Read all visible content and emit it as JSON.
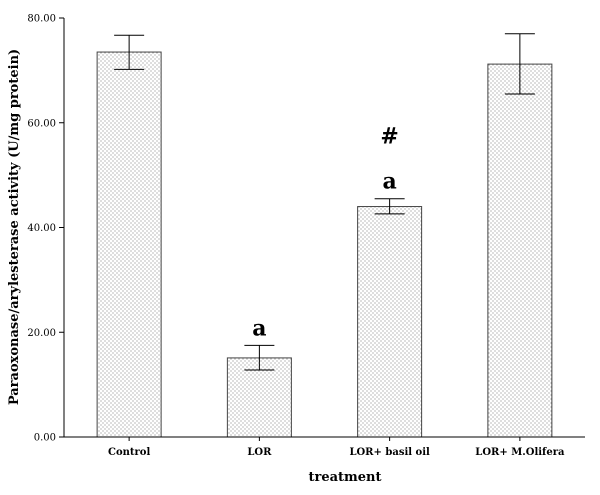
{
  "chart_data": {
    "type": "bar",
    "title": "",
    "xlabel": "treatment",
    "ylabel": "Paraoxonase/arylesterase activity (U/mg protein)",
    "ylim": [
      0,
      80
    ],
    "y_ticks": [
      "0.00",
      "20.00",
      "40.00",
      "60.00",
      "80.00"
    ],
    "categories": [
      "Control",
      "LOR",
      "LOR+ basil oil",
      "LOR+ M.Olifera"
    ],
    "values": [
      73.5,
      15.1,
      44.0,
      71.2
    ],
    "error_low": [
      70.2,
      12.8,
      42.6,
      65.5
    ],
    "error_high": [
      76.7,
      17.5,
      45.5,
      77.0
    ],
    "annotations": [
      {
        "category": "LOR",
        "labels": [
          "a"
        ]
      },
      {
        "category": "LOR+ basil oil",
        "labels": [
          "a",
          "#"
        ]
      }
    ],
    "bar_pattern": "dotted",
    "grid": false,
    "legend": "none"
  }
}
